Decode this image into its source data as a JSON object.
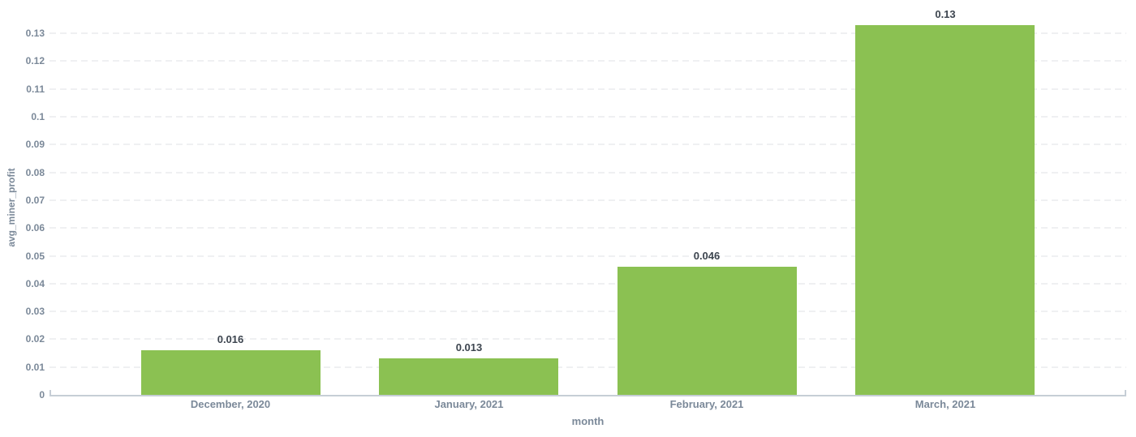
{
  "chart_data": {
    "type": "bar",
    "title": "",
    "xlabel": "month",
    "ylabel": "avg_miner_profit",
    "categories": [
      "December, 2020",
      "January, 2021",
      "February, 2021",
      "March, 2021"
    ],
    "values": [
      0.016,
      0.013,
      0.046,
      0.133
    ],
    "value_labels": [
      "0.016",
      "0.013",
      "0.046",
      "0.13"
    ],
    "yticks": [
      0,
      0.01,
      0.02,
      0.03,
      0.04,
      0.05,
      0.06,
      0.07,
      0.08,
      0.09,
      0.1,
      0.11,
      0.12,
      0.13
    ],
    "ylim": [
      0,
      0.142
    ],
    "grid": "horizontal-dashed",
    "legend": "none",
    "colors": {
      "bar": "#8bc152",
      "axis_text": "#7b8999",
      "value_label": "#3d454f",
      "gridline": "#eff0f2",
      "axis_line": "#c6ced6",
      "background": "#ffffff"
    }
  }
}
